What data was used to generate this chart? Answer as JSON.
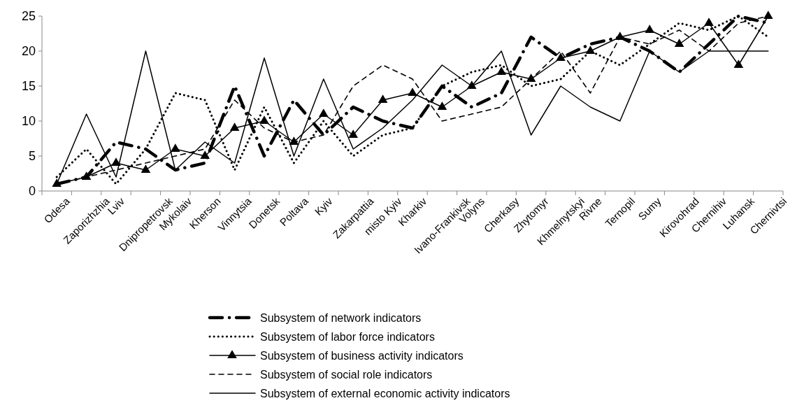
{
  "chart_data": {
    "type": "line",
    "categories": [
      "Odesa",
      "Zaporizhzhia",
      "Lviv",
      "Dnipropetrovsk",
      "Mykolaiv",
      "Kherson",
      "Vinnytsia",
      "Donetsk",
      "Poltava",
      "Kyiv",
      "Zakarpattia",
      "misto Kyiv",
      "Kharkiv",
      "Ivano-Frankivsk",
      "Volyns",
      "Cherkasy",
      "Zhytomyr",
      "Khmelnytskyi",
      "Rivne",
      "Ternopil",
      "Sumy",
      "Kirovohrad",
      "Chernihiv",
      "Luhansk",
      "Chernivtsi"
    ],
    "ylim": [
      0,
      25
    ],
    "yticks": [
      0,
      5,
      10,
      15,
      20,
      25
    ],
    "grid": false,
    "legend": "bottom",
    "marker": "none",
    "series": [
      {
        "name": "Subsystem of network indicators",
        "color": "#000000",
        "line_style": "dashdot",
        "values": [
          1,
          2,
          7,
          6,
          3,
          4,
          15,
          5,
          13,
          8,
          12,
          10,
          9,
          15,
          12,
          14,
          22,
          19,
          21,
          22,
          20,
          17,
          21,
          25,
          24
        ]
      },
      {
        "name": "Subsystem of labor force indicators",
        "color": "#000000",
        "line_style": "dotted",
        "values": [
          2,
          6,
          1,
          6,
          14,
          13,
          3,
          12,
          4,
          10,
          5,
          8,
          9,
          15,
          17,
          18,
          15,
          16,
          20,
          18,
          21,
          24,
          23,
          25,
          22
        ]
      },
      {
        "name": "Subsystem of business activity indicators",
        "color": "#000000",
        "line_style": "solid",
        "marker": "triangle",
        "values": [
          1,
          2,
          4,
          3,
          6,
          5,
          9,
          10,
          7,
          11,
          8,
          13,
          14,
          12,
          15,
          17,
          16,
          19,
          20,
          22,
          23,
          21,
          24,
          18,
          25
        ]
      },
      {
        "name": "Subsystem of social role indicators",
        "color": "#000000",
        "line_style": "dashed",
        "values": [
          1,
          2,
          3,
          4,
          5,
          6,
          13,
          9,
          7,
          8,
          15,
          18,
          16,
          10,
          11,
          12,
          16,
          20,
          14,
          22,
          21,
          23,
          20,
          24,
          25
        ]
      },
      {
        "name": "Subsystem of external economic activity indicators",
        "color": "#000000",
        "line_style": "solid",
        "values": [
          1,
          11,
          2,
          20,
          3,
          7,
          4,
          19,
          5,
          16,
          6,
          9,
          13,
          18,
          15,
          20,
          8,
          15,
          12,
          10,
          20,
          17,
          20,
          20,
          20
        ]
      }
    ]
  }
}
